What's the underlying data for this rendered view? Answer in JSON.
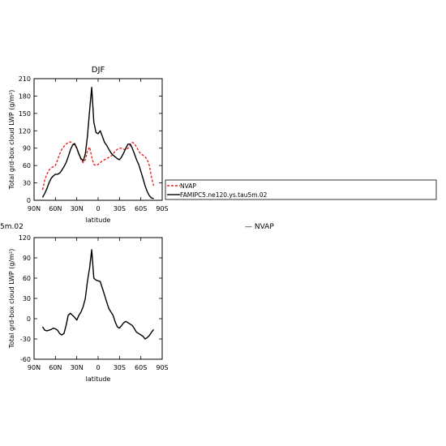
{
  "left_cut_text": "5m.02",
  "right_label": "— NVAP",
  "colors": {
    "nvap": "#e8231f",
    "model": "#000000"
  },
  "chart_data": [
    {
      "type": "line",
      "title": "DJF",
      "xlabel": "latitude",
      "ylabel": "Total grd-box cloud LWP (g/m²)",
      "xlim": [
        90,
        -90
      ],
      "ylim": [
        0,
        210
      ],
      "x_ticks": [
        90,
        60,
        30,
        0,
        -30,
        -60,
        -90
      ],
      "x_tick_labels": [
        "90N",
        "60N",
        "30N",
        "0",
        "30S",
        "60S",
        "90S"
      ],
      "y_ticks": [
        0,
        30,
        60,
        90,
        120,
        150,
        180,
        210
      ],
      "legend": {
        "placement": "right",
        "entries": [
          "NVAP",
          "FAMIPC5.ne120.ys.tau5m.02"
        ]
      },
      "series": [
        {
          "name": "NVAP",
          "style": "dashed",
          "color": "#e8231f",
          "x": [
            78,
            75,
            72,
            69,
            66,
            63,
            60,
            57,
            54,
            51,
            48,
            45,
            42,
            39,
            36,
            33,
            30,
            27,
            24,
            21,
            18,
            15,
            12,
            9,
            6,
            3,
            0,
            -3,
            -6,
            -9,
            -12,
            -15,
            -18,
            -21,
            -24,
            -27,
            -30,
            -33,
            -36,
            -39,
            -42,
            -45,
            -48,
            -51,
            -54,
            -57,
            -60,
            -63,
            -66,
            -69,
            -72,
            -75,
            -78
          ],
          "values": [
            18,
            35,
            45,
            52,
            56,
            58,
            60,
            70,
            80,
            88,
            93,
            97,
            100,
            101,
            98,
            95,
            90,
            80,
            70,
            65,
            70,
            85,
            92,
            75,
            62,
            60,
            62,
            65,
            68,
            70,
            72,
            74,
            76,
            80,
            85,
            88,
            90,
            90,
            88,
            87,
            90,
            95,
            100,
            98,
            92,
            85,
            80,
            78,
            75,
            70,
            60,
            40,
            25
          ]
        },
        {
          "name": "FAMIPC5.ne120.ys.tau5m.02",
          "style": "solid",
          "color": "#000000",
          "x": [
            78,
            75,
            72,
            69,
            66,
            63,
            60,
            57,
            54,
            51,
            48,
            45,
            42,
            39,
            36,
            33,
            30,
            27,
            24,
            21,
            18,
            15,
            12,
            9,
            6,
            3,
            0,
            -3,
            -6,
            -9,
            -12,
            -15,
            -18,
            -21,
            -24,
            -27,
            -30,
            -33,
            -36,
            -39,
            -42,
            -45,
            -48,
            -51,
            -54,
            -57,
            -60,
            -63,
            -66,
            -69,
            -72,
            -75,
            -78
          ],
          "values": [
            5,
            12,
            20,
            30,
            38,
            42,
            45,
            45,
            47,
            52,
            58,
            65,
            75,
            87,
            95,
            98,
            90,
            80,
            72,
            68,
            80,
            110,
            155,
            195,
            135,
            117,
            115,
            120,
            110,
            100,
            95,
            88,
            82,
            78,
            75,
            72,
            70,
            75,
            82,
            90,
            97,
            97,
            90,
            80,
            70,
            62,
            50,
            38,
            25,
            15,
            8,
            4,
            3
          ]
        }
      ]
    },
    {
      "type": "line",
      "title": "",
      "xlabel": "latitude",
      "ylabel": "Total grd-box cloud LWP (g/m²)",
      "xlim": [
        90,
        -90
      ],
      "ylim": [
        -60,
        120
      ],
      "x_ticks": [
        90,
        60,
        30,
        0,
        -30,
        -60,
        -90
      ],
      "x_tick_labels": [
        "90N",
        "60N",
        "30N",
        "0",
        "30S",
        "60S",
        "90S"
      ],
      "y_ticks": [
        -60,
        -30,
        0,
        30,
        60,
        90,
        120
      ],
      "series": [
        {
          "style": "solid",
          "color": "#000000",
          "x": [
            78,
            75,
            72,
            69,
            66,
            63,
            60,
            57,
            54,
            51,
            48,
            45,
            42,
            39,
            36,
            33,
            30,
            27,
            24,
            21,
            18,
            15,
            12,
            9,
            6,
            3,
            0,
            -3,
            -6,
            -9,
            -12,
            -15,
            -18,
            -21,
            -24,
            -27,
            -30,
            -33,
            -36,
            -39,
            -42,
            -45,
            -48,
            -51,
            -54,
            -57,
            -60,
            -63,
            -66,
            -69,
            -72,
            -75,
            -78
          ],
          "values": [
            -12,
            -17,
            -18,
            -17,
            -16,
            -14,
            -15,
            -17,
            -22,
            -24,
            -22,
            -10,
            5,
            8,
            5,
            2,
            -2,
            5,
            10,
            18,
            30,
            55,
            75,
            102,
            60,
            57,
            56,
            55,
            45,
            35,
            25,
            15,
            10,
            5,
            -5,
            -12,
            -14,
            -10,
            -6,
            -4,
            -6,
            -8,
            -10,
            -15,
            -20,
            -22,
            -24,
            -26,
            -30,
            -28,
            -25,
            -20,
            -16
          ]
        }
      ]
    }
  ]
}
